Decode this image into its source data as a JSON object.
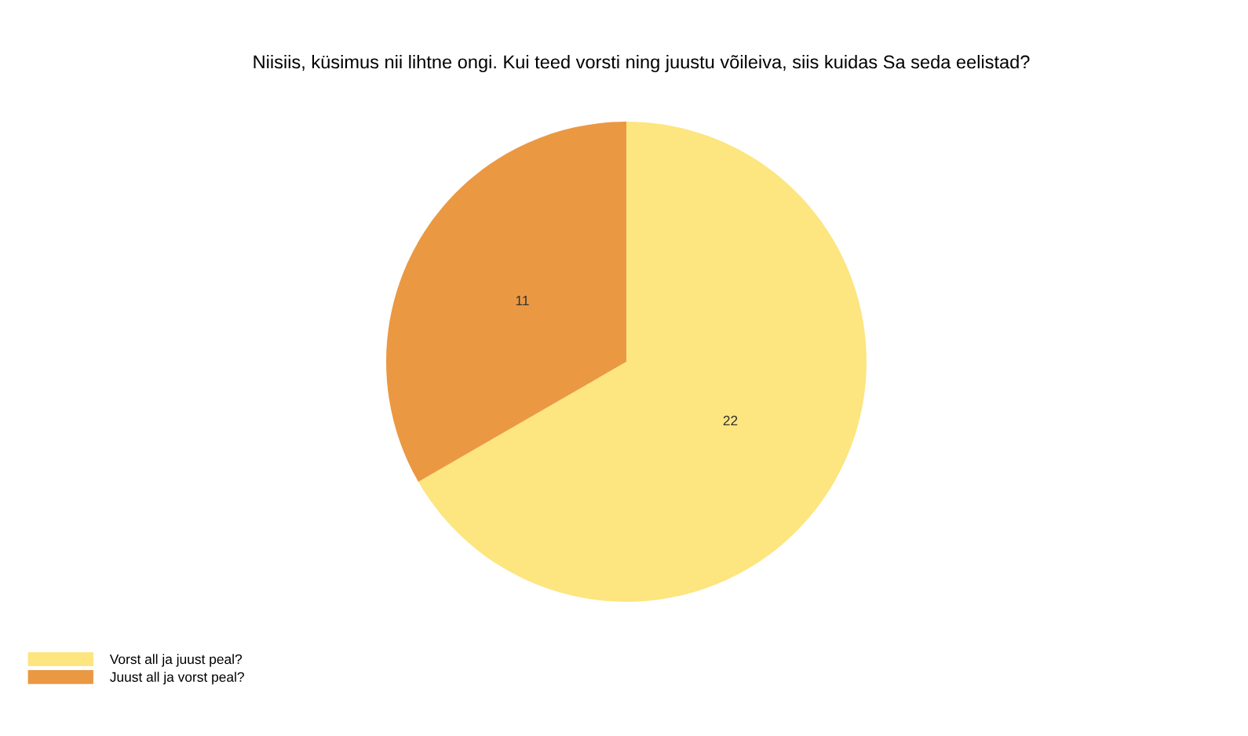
{
  "chart_data": {
    "type": "pie",
    "title": "Niisiis, küsimus nii lihtne ongi. Kui teed vorsti ning juustu võileiva, siis kuidas Sa seda eelistad?",
    "categories": [
      "Vorst all ja juust peal?",
      "Juust all ja vorst peal?"
    ],
    "values": [
      22,
      11
    ],
    "colors": [
      "#fde57f",
      "#eb9843"
    ],
    "data_labels": true,
    "legend": "bottom left"
  }
}
